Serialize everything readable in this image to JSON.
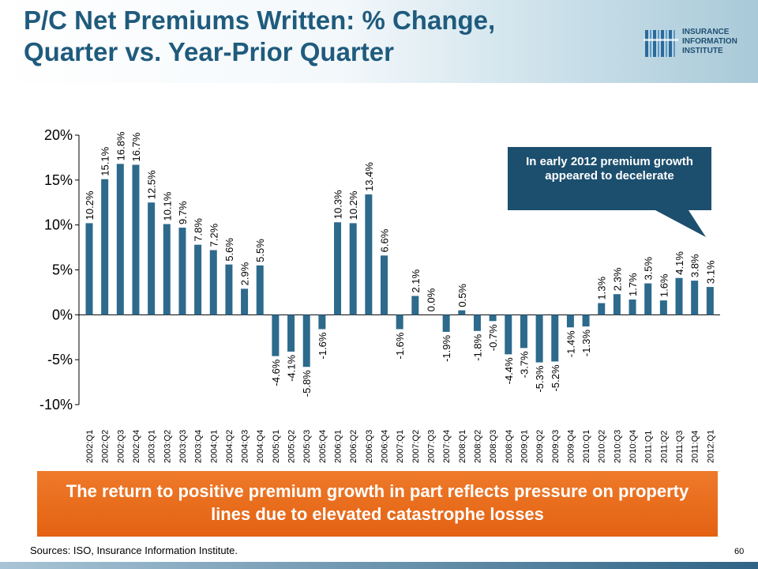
{
  "slide": {
    "title_line1": "P/C Net Premiums Written: % Change,",
    "title_line2": "Quarter vs. Year-Prior Quarter",
    "logo_line1": "INSURANCE",
    "logo_line2": "INFORMATION",
    "logo_line3": "INSTITUTE",
    "callout_text": "In early 2012 premium growth appeared to decelerate",
    "banner_text": "The return to positive premium growth in part reflects pressure on property lines due to elevated catastrophe losses",
    "sources": "Sources: ISO, Insurance Information Institute.",
    "page_number": "60",
    "colors": {
      "title": "#1f5b7d",
      "bar": "#2d6a8c",
      "callout": "#1c4f6e",
      "banner": "#e8671a"
    }
  },
  "chart_data": {
    "type": "bar",
    "title": "",
    "xlabel": "",
    "ylabel": "",
    "ylim": [
      -10,
      20
    ],
    "yticks": [
      20,
      15,
      10,
      5,
      0,
      -5,
      -10
    ],
    "ytick_labels": [
      "20%",
      "15%",
      "10%",
      "5%",
      "0%",
      "-5%",
      "-10%"
    ],
    "grid": false,
    "categories": [
      "2002:Q1",
      "2002:Q2",
      "2002:Q3",
      "2002:Q4",
      "2003:Q1",
      "2003:Q2",
      "2003:Q3",
      "2003:Q4",
      "2004:Q1",
      "2004:Q2",
      "2004:Q3",
      "2004:Q4",
      "2005:Q1",
      "2005:Q2",
      "2005:Q3",
      "2005:Q4",
      "2006:Q1",
      "2006:Q2",
      "2006:Q3",
      "2006:Q4",
      "2007:Q1",
      "2007:Q2",
      "2007:Q3",
      "2007:Q4",
      "2008:Q1",
      "2008:Q2",
      "2008:Q3",
      "2008:Q4",
      "2009:Q1",
      "2009:Q2",
      "2009:Q3",
      "2009:Q4",
      "2010:Q1",
      "2010:Q2",
      "2010:Q3",
      "2010:Q4",
      "2011:Q1",
      "2011:Q2",
      "2011:Q3",
      "2011:Q4",
      "2012:Q1"
    ],
    "values": [
      10.2,
      15.1,
      16.8,
      16.7,
      12.5,
      10.1,
      9.7,
      7.8,
      7.2,
      5.6,
      2.9,
      5.5,
      -4.6,
      -4.1,
      -5.8,
      -1.6,
      10.3,
      10.2,
      13.4,
      6.6,
      -1.6,
      2.1,
      0.0,
      -1.9,
      0.5,
      -1.8,
      -0.7,
      -4.4,
      -3.7,
      -5.3,
      -5.2,
      -1.4,
      -1.3,
      1.3,
      2.3,
      1.7,
      3.5,
      1.6,
      4.1,
      3.8,
      3.1
    ],
    "value_labels": [
      "10.2%",
      "15.1%",
      "16.8%",
      "16.7%",
      "12.5%",
      "10.1%",
      "9.7%",
      "7.8%",
      "7.2%",
      "5.6%",
      "2.9%",
      "5.5%",
      "-4.6%",
      "-4.1%",
      "-5.8%",
      "-1.6%",
      "10.3%",
      "10.2%",
      "13.4%",
      "6.6%",
      "-1.6%",
      "2.1%",
      "0.0%",
      "-1.9%",
      "0.5%",
      "-1.8%",
      "-0.7%",
      "-4.4%",
      "-3.7%",
      "-5.3%",
      "-5.2%",
      "-1.4%",
      "-1.3%",
      "1.3%",
      "2.3%",
      "1.7%",
      "3.5%",
      "1.6%",
      "4.1%",
      "3.8%",
      "3.1%"
    ]
  }
}
